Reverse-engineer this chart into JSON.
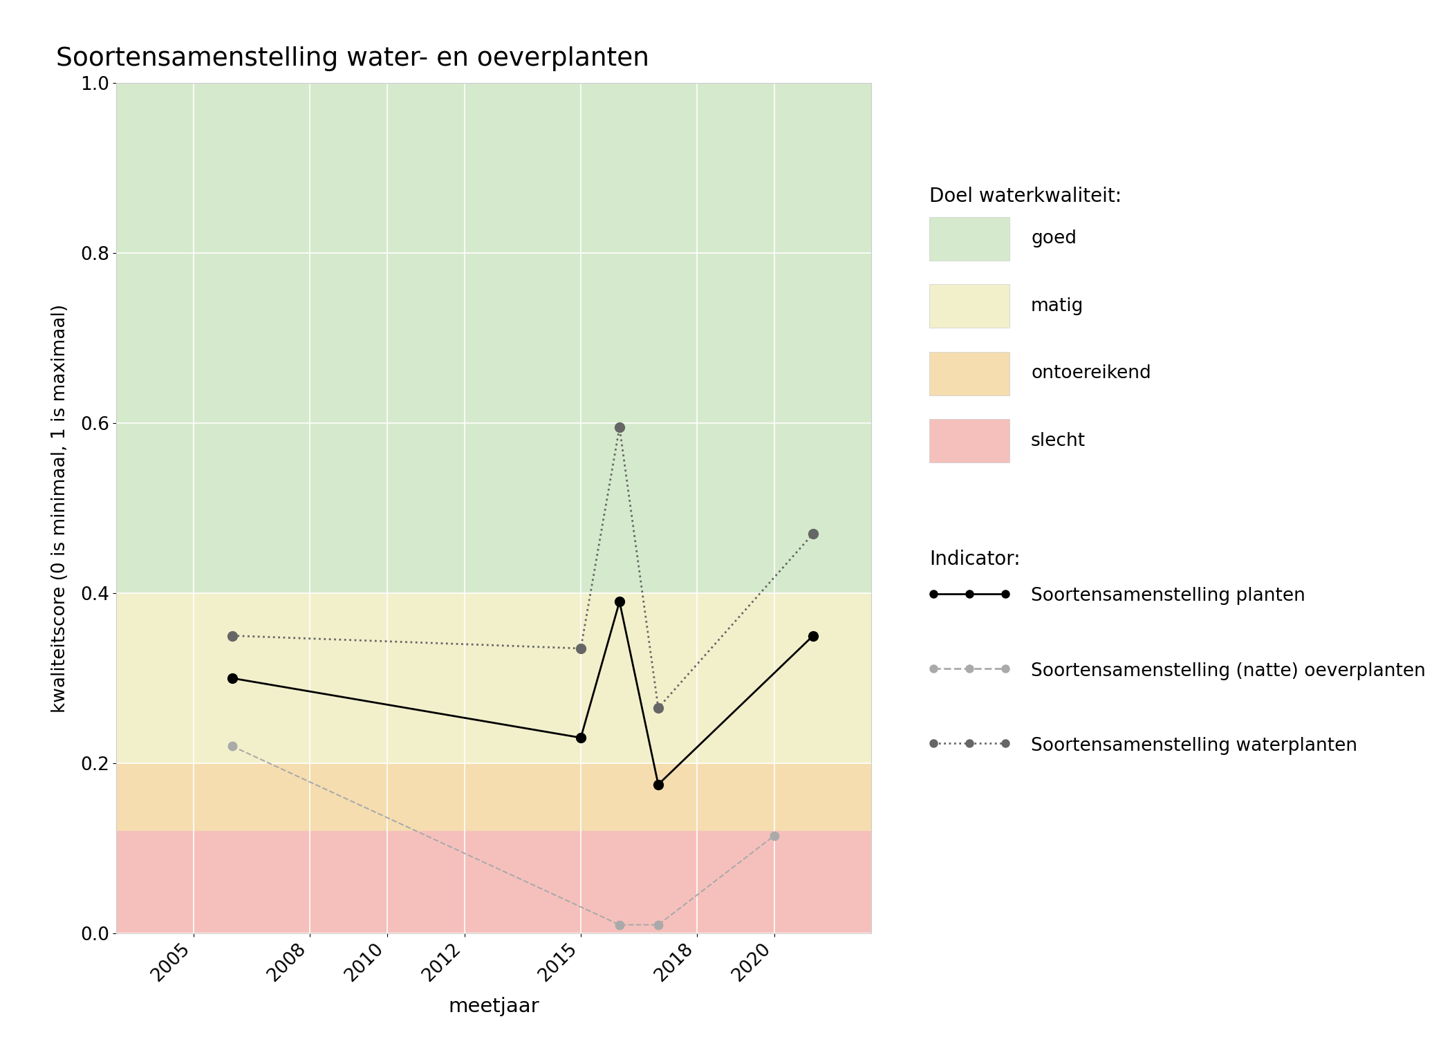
{
  "title": "Soortensamenstelling water- en oeverplanten",
  "xlabel": "meetjaar",
  "ylabel": "kwaliteitscore (0 is minimaal, 1 is maximaal)",
  "xlim": [
    2003.0,
    2022.5
  ],
  "ylim": [
    0.0,
    1.0
  ],
  "xticks": [
    2005,
    2008,
    2010,
    2012,
    2015,
    2018,
    2020
  ],
  "yticks": [
    0.0,
    0.2,
    0.4,
    0.6,
    0.8,
    1.0
  ],
  "bg_colors": [
    {
      "label": "goed",
      "color": "#d5eacc",
      "ymin": 0.4,
      "ymax": 1.0
    },
    {
      "label": "matig",
      "color": "#f2f0cb",
      "ymin": 0.2,
      "ymax": 0.4
    },
    {
      "label": "ontoereikend",
      "color": "#f5ddb0",
      "ymin": 0.12,
      "ymax": 0.2
    },
    {
      "label": "slecht",
      "color": "#f5c0bc",
      "ymin": 0.0,
      "ymax": 0.12
    }
  ],
  "series_planten": {
    "x": [
      2006,
      2015,
      2016,
      2017,
      2021
    ],
    "y": [
      0.3,
      0.23,
      0.39,
      0.175,
      0.35
    ],
    "label": "Soortensamenstelling planten",
    "color": "black",
    "linestyle": "solid",
    "linewidth": 2.0,
    "marker": "o",
    "markersize": 10
  },
  "series_oeverplanten": {
    "x": [
      2006,
      2016,
      2017,
      2020
    ],
    "y": [
      0.22,
      0.01,
      0.01,
      0.115
    ],
    "label": "Soortensamenstelling (natte) oeverplanten",
    "color": "#aaaaaa",
    "linestyle": "dashed",
    "linewidth": 1.5,
    "marker": "o",
    "markersize": 9
  },
  "series_waterplanten": {
    "x": [
      2006,
      2015,
      2016,
      2017,
      2021
    ],
    "y": [
      0.35,
      0.335,
      0.595,
      0.265,
      0.47
    ],
    "label": "Soortensamenstelling waterplanten",
    "color": "#666666",
    "linestyle": "dotted",
    "linewidth": 2.0,
    "marker": "o",
    "markersize": 10
  },
  "legend_quality_title": "Doel waterkwaliteit:",
  "legend_indicator_title": "Indicator:",
  "figure_bg": "#ffffff"
}
